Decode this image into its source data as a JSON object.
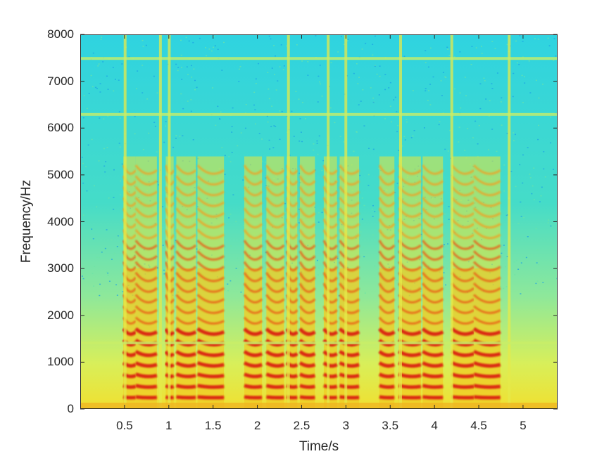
{
  "chart_data": {
    "type": "heatmap",
    "subtype": "spectrogram",
    "title": "",
    "xlabel": "Time/s",
    "ylabel": "Frequency/Hz",
    "xlim": [
      0,
      5.39
    ],
    "ylim": [
      0,
      8000
    ],
    "x_ticks": [
      0.5,
      1,
      1.5,
      2,
      2.5,
      3,
      3.5,
      4,
      4.5,
      5
    ],
    "x_tick_labels": [
      "0.5",
      "1",
      "1.5",
      "2",
      "2.5",
      "3",
      "3.5",
      "4",
      "4.5",
      "5"
    ],
    "y_ticks": [
      0,
      1000,
      2000,
      3000,
      4000,
      5000,
      6000,
      7000,
      8000
    ],
    "y_tick_labels": [
      "0",
      "1000",
      "2000",
      "3000",
      "4000",
      "5000",
      "6000",
      "7000",
      "8000"
    ],
    "colormap": "jet",
    "grid": false,
    "legend": null,
    "colorbar": false,
    "background_color": "#2fd3e0",
    "high_energy_color": "#d9140f",
    "voiced_segments_s": [
      [
        0.48,
        0.62
      ],
      [
        0.62,
        0.86
      ],
      [
        0.96,
        1.05
      ],
      [
        1.08,
        1.3
      ],
      [
        1.32,
        1.62
      ],
      [
        1.85,
        2.05
      ],
      [
        2.1,
        2.3
      ],
      [
        2.33,
        2.45
      ],
      [
        2.48,
        2.65
      ],
      [
        2.75,
        2.9
      ],
      [
        2.93,
        3.15
      ],
      [
        3.38,
        3.55
      ],
      [
        3.6,
        3.85
      ],
      [
        3.87,
        4.1
      ],
      [
        4.2,
        4.45
      ],
      [
        4.45,
        4.75
      ]
    ],
    "broadband_streaks_s": [
      0.5,
      0.9,
      1.0,
      2.35,
      2.8,
      3.0,
      3.62,
      4.2,
      4.85
    ],
    "horizontal_bands_hz": [
      7500,
      6300,
      1400
    ]
  }
}
